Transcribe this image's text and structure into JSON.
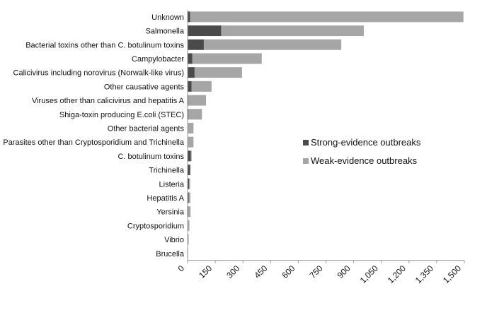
{
  "chart_data": {
    "type": "bar",
    "orientation": "horizontal",
    "stacked": true,
    "categories": [
      "Unknown",
      "Salmonella",
      "Bacterial toxins other than C. botulinum toxins",
      "Campylobacter",
      "Calicivirus including norovirus (Norwalk-like virus)",
      "Other causative agents",
      "Viruses other than calicivirus and hepatitis A",
      "Shiga-toxin producing E.coli (STEC)",
      "Other bacterial agents",
      "Parasites other than Cryptosporidium and Trichinella",
      "C. botulinum toxins",
      "Trichinella",
      "Listeria",
      "Hepatitis A",
      "Yersinia",
      "Cryptosporidium",
      "Vibrio",
      "Brucella"
    ],
    "series": [
      {
        "name": "Strong-evidence outbreaks",
        "color": "#4a4a4a",
        "values": [
          14,
          182,
          88,
          26,
          38,
          22,
          4,
          5,
          2,
          2,
          18,
          14,
          8,
          6,
          4,
          1,
          1,
          1
        ]
      },
      {
        "name": "Weak-evidence outbreaks",
        "color": "#a6a6a6",
        "values": [
          1481,
          773,
          745,
          376,
          257,
          108,
          96,
          73,
          30,
          30,
          4,
          2,
          6,
          9,
          12,
          9,
          5,
          2
        ]
      }
    ],
    "xlim": [
      0,
      1500
    ],
    "xticks": [
      "0",
      "150",
      "300",
      "450",
      "600",
      "750",
      "900",
      "1,050",
      "1,200",
      "1,350",
      "1,500"
    ],
    "xtick_values": [
      0,
      150,
      300,
      450,
      600,
      750,
      900,
      1050,
      1200,
      1350,
      1500
    ],
    "legend_position": "right",
    "grid": false
  }
}
